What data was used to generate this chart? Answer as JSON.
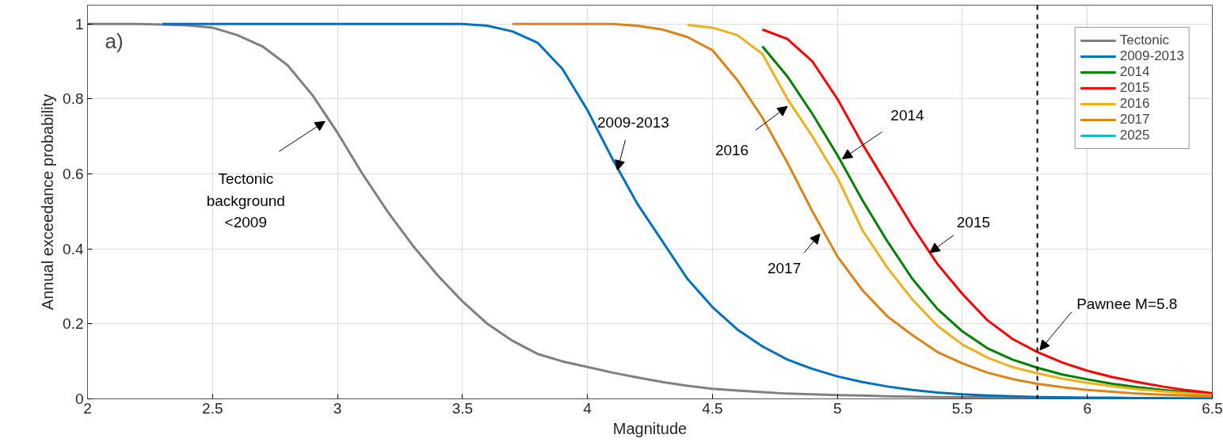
{
  "chart_data": {
    "type": "line",
    "xlabel": "Magnitude",
    "ylabel": "Annual exceedance probability",
    "x": [
      2.0,
      2.1,
      2.2,
      2.3,
      2.4,
      2.5,
      2.6,
      2.7,
      2.8,
      2.9,
      3.0,
      3.1,
      3.2,
      3.3,
      3.4,
      3.5,
      3.6,
      3.7,
      3.8,
      3.9,
      4.0,
      4.1,
      4.2,
      4.3,
      4.4,
      4.5,
      4.6,
      4.7,
      4.8,
      4.9,
      5.0,
      5.1,
      5.2,
      5.3,
      5.4,
      5.5,
      5.6,
      5.7,
      5.8,
      5.9,
      6.0,
      6.1,
      6.2,
      6.3,
      6.4,
      6.5
    ],
    "series": [
      {
        "name": "Tectonic",
        "color": "#808080",
        "values": [
          1,
          1,
          1,
          0.998,
          0.996,
          0.99,
          0.97,
          0.94,
          0.89,
          0.81,
          0.71,
          0.6,
          0.5,
          0.41,
          0.33,
          0.26,
          0.2,
          0.155,
          0.12,
          0.1,
          0.085,
          0.07,
          0.057,
          0.045,
          0.035,
          0.027,
          0.022,
          0.018,
          0.014,
          0.012,
          0.01,
          0.009,
          0.007,
          0.006,
          0.005,
          0.004,
          0.004,
          0.003,
          0.003,
          0.002,
          0.002,
          0.002,
          0.001,
          0.001,
          0.001,
          0.001
        ]
      },
      {
        "name": "2009-2013",
        "color": "#0072bd",
        "values": [
          null,
          null,
          null,
          1,
          1,
          1,
          1,
          1,
          1,
          1,
          1,
          1,
          1,
          1,
          1,
          1,
          0.995,
          0.98,
          0.95,
          0.88,
          0.77,
          0.64,
          0.52,
          0.42,
          0.32,
          0.245,
          0.185,
          0.14,
          0.105,
          0.08,
          0.06,
          0.045,
          0.033,
          0.024,
          0.017,
          0.012,
          0.009,
          0.007,
          0.005,
          0.004,
          0.003,
          0.003,
          0.002,
          0.002,
          0.001,
          0.001
        ]
      },
      {
        "name": "2014",
        "color": "#008000",
        "values": [
          null,
          null,
          null,
          null,
          null,
          null,
          null,
          null,
          null,
          null,
          null,
          null,
          null,
          null,
          null,
          null,
          null,
          null,
          null,
          null,
          null,
          null,
          null,
          null,
          null,
          null,
          null,
          0.94,
          0.86,
          0.76,
          0.65,
          0.53,
          0.42,
          0.32,
          0.24,
          0.18,
          0.135,
          0.105,
          0.083,
          0.065,
          0.052,
          0.04,
          0.031,
          0.024,
          0.018,
          0.013
        ]
      },
      {
        "name": "2015",
        "color": "#ff0000",
        "values": [
          null,
          null,
          null,
          null,
          null,
          null,
          null,
          null,
          null,
          null,
          null,
          null,
          null,
          null,
          null,
          null,
          null,
          null,
          null,
          null,
          null,
          null,
          null,
          null,
          null,
          null,
          null,
          0.985,
          0.96,
          0.9,
          0.8,
          0.68,
          0.57,
          0.46,
          0.36,
          0.28,
          0.21,
          0.16,
          0.125,
          0.097,
          0.075,
          0.058,
          0.045,
          0.033,
          0.023,
          0.015
        ]
      },
      {
        "name": "2016",
        "color": "#edb120",
        "values": [
          null,
          null,
          null,
          null,
          null,
          null,
          null,
          null,
          null,
          null,
          null,
          null,
          null,
          null,
          null,
          null,
          null,
          null,
          null,
          null,
          null,
          null,
          null,
          null,
          0.997,
          0.99,
          0.97,
          0.92,
          0.8,
          0.7,
          0.59,
          0.45,
          0.35,
          0.265,
          0.195,
          0.145,
          0.11,
          0.085,
          0.068,
          0.054,
          0.043,
          0.034,
          0.026,
          0.02,
          0.015,
          0.01
        ]
      },
      {
        "name": "2017",
        "color": "#d9851a",
        "values": [
          null,
          null,
          null,
          null,
          null,
          null,
          null,
          null,
          null,
          null,
          null,
          null,
          null,
          null,
          null,
          null,
          null,
          1,
          1,
          1,
          1,
          1,
          0.995,
          0.985,
          0.965,
          0.93,
          0.85,
          0.75,
          0.63,
          0.5,
          0.38,
          0.29,
          0.22,
          0.17,
          0.125,
          0.095,
          0.07,
          0.053,
          0.04,
          0.031,
          0.024,
          0.019,
          0.014,
          0.011,
          0.009,
          0.007
        ]
      },
      {
        "name": "2025",
        "color": "#17bfbf",
        "values": [
          null,
          null,
          null,
          null,
          null,
          null,
          null,
          null,
          null,
          null,
          null,
          null,
          null,
          null,
          null,
          null,
          null,
          null,
          null,
          null,
          null,
          null,
          null,
          null,
          null,
          null,
          null,
          null,
          null,
          null,
          null,
          null,
          null,
          null,
          null,
          null,
          null,
          null,
          null,
          null,
          null,
          null,
          null,
          null,
          null,
          null
        ]
      }
    ],
    "xlim": [
      2,
      6.5
    ],
    "xticks": [
      2,
      2.5,
      3,
      3.5,
      4,
      4.5,
      5,
      5.5,
      6,
      6.5
    ],
    "ylim": [
      0,
      1.05
    ],
    "yticks": [
      0,
      0.2,
      0.4,
      0.6,
      0.8,
      1
    ],
    "grid": true,
    "legend": "top right",
    "line_style": "solid",
    "ref_lines": [
      {
        "axis": "x",
        "value": 5.8,
        "color": "#000000",
        "line_style": "dashed"
      }
    ],
    "annotations": [
      "a)",
      {
        "text": "Tectonic\nbackground\n<2009",
        "x": 2.95,
        "y": 0.74
      },
      {
        "text": "2009-2013",
        "x": 4.12,
        "y": 0.61
      },
      {
        "text": "2016",
        "x": 4.8,
        "y": 0.78
      },
      {
        "text": "2014",
        "x": 5.02,
        "y": 0.64
      },
      {
        "text": "2015",
        "x": 5.37,
        "y": 0.39
      },
      {
        "text": "2017",
        "x": 4.93,
        "y": 0.44
      },
      {
        "text": "Pawnee M=5.8",
        "x": 5.81,
        "y": 0.13
      }
    ]
  }
}
